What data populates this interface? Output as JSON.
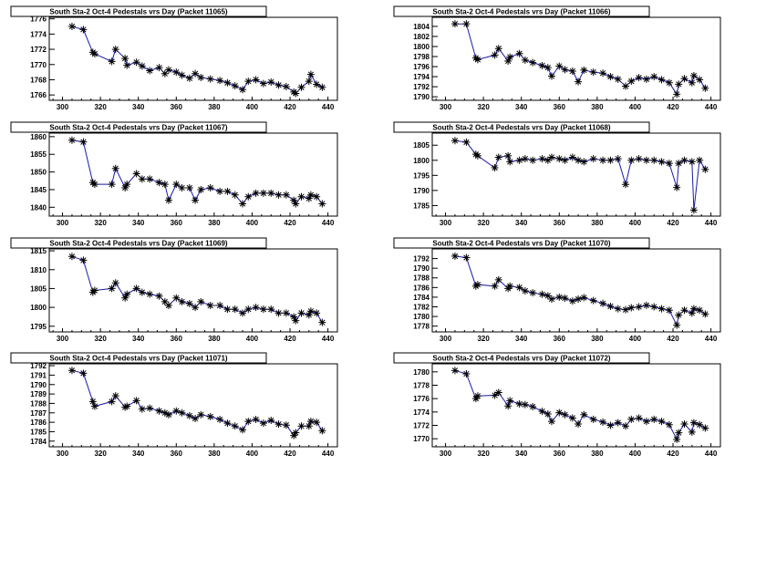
{
  "chart_data": [
    {
      "type": "line",
      "title": "South Sta-2 Oct-4 Pedestals vrs Day (Packet 11065)",
      "xlabel": "",
      "ylabel": "",
      "xlim": [
        293,
        445
      ],
      "ylim": [
        1765.3,
        1776.2
      ],
      "x_ticks": [
        300,
        320,
        340,
        360,
        380,
        400,
        420,
        440
      ],
      "y_ticks": [
        1766,
        1768,
        1770,
        1772,
        1774,
        1776
      ],
      "x": [
        305,
        311,
        316,
        317,
        326,
        328,
        333,
        334,
        339,
        342,
        346,
        351,
        354,
        356,
        360,
        363,
        367,
        370,
        373,
        378,
        383,
        387,
        391,
        395,
        398,
        402,
        406,
        410,
        414,
        418,
        422,
        423,
        426,
        430,
        431,
        434,
        437
      ],
      "values": [
        1775.0,
        1774.6,
        1771.6,
        1771.4,
        1770.4,
        1772.0,
        1770.8,
        1769.9,
        1770.3,
        1769.8,
        1769.2,
        1769.6,
        1768.8,
        1769.3,
        1769.0,
        1768.6,
        1768.2,
        1768.8,
        1768.3,
        1768.1,
        1767.9,
        1767.6,
        1767.2,
        1766.7,
        1767.8,
        1768.0,
        1767.5,
        1767.7,
        1767.3,
        1767.1,
        1766.4,
        1766.2,
        1767.0,
        1767.8,
        1768.7,
        1767.4,
        1767.0
      ]
    },
    {
      "type": "line",
      "title": "South Sta-2 Oct-4 Pedestals vrs Day (Packet 11066)",
      "xlabel": "",
      "ylabel": "",
      "xlim": [
        293,
        445
      ],
      "ylim": [
        1789.3,
        1805.8
      ],
      "x_ticks": [
        300,
        320,
        340,
        360,
        380,
        400,
        420,
        440
      ],
      "y_ticks": [
        1790,
        1792,
        1794,
        1796,
        1798,
        1800,
        1802,
        1804
      ],
      "x": [
        305,
        311,
        316,
        317,
        326,
        328,
        333,
        334,
        339,
        342,
        346,
        351,
        354,
        356,
        360,
        363,
        367,
        370,
        373,
        378,
        383,
        387,
        391,
        395,
        398,
        402,
        406,
        410,
        414,
        418,
        422,
        423,
        426,
        430,
        431,
        434,
        437
      ],
      "values": [
        1804.5,
        1804.5,
        1797.7,
        1797.4,
        1798.3,
        1799.6,
        1797.1,
        1797.9,
        1798.6,
        1797.3,
        1796.8,
        1796.2,
        1795.8,
        1794.1,
        1796.1,
        1795.4,
        1795.1,
        1793.0,
        1795.3,
        1794.9,
        1794.7,
        1794.0,
        1793.5,
        1792.1,
        1793.1,
        1793.8,
        1793.5,
        1794.0,
        1793.4,
        1792.8,
        1790.5,
        1792.5,
        1793.6,
        1792.8,
        1794.2,
        1793.4,
        1791.7
      ]
    },
    {
      "type": "line",
      "title": "South Sta-2 Oct-4 Pedestals vrs Day (Packet 11067)",
      "xlabel": "",
      "ylabel": "",
      "xlim": [
        293,
        445
      ],
      "ylim": [
        1837.5,
        1861.0
      ],
      "x_ticks": [
        300,
        320,
        340,
        360,
        380,
        400,
        420,
        440
      ],
      "y_ticks": [
        1840,
        1845,
        1850,
        1855,
        1860
      ],
      "x": [
        305,
        311,
        316,
        317,
        326,
        328,
        333,
        334,
        339,
        342,
        346,
        351,
        354,
        356,
        360,
        363,
        367,
        370,
        373,
        378,
        383,
        387,
        391,
        395,
        398,
        402,
        406,
        410,
        414,
        418,
        422,
        423,
        426,
        430,
        431,
        434,
        437
      ],
      "values": [
        1859.0,
        1858.5,
        1847.0,
        1846.5,
        1846.5,
        1851.0,
        1845.5,
        1846.5,
        1849.5,
        1848.0,
        1848.0,
        1847.0,
        1846.5,
        1842.0,
        1846.5,
        1845.5,
        1845.5,
        1842.0,
        1845.0,
        1845.5,
        1844.5,
        1844.5,
        1843.5,
        1841.0,
        1843.0,
        1844.0,
        1844.0,
        1844.0,
        1843.5,
        1843.5,
        1842.0,
        1841.0,
        1843.0,
        1842.5,
        1843.5,
        1843.0,
        1841.0
      ]
    },
    {
      "type": "line",
      "title": "South Sta-2 Oct-4 Pedestals vrs Day (Packet 11068)",
      "xlabel": "",
      "ylabel": "",
      "xlim": [
        293,
        445
      ],
      "ylim": [
        1781.5,
        1809.0
      ],
      "x_ticks": [
        300,
        320,
        340,
        360,
        380,
        400,
        420,
        440
      ],
      "y_ticks": [
        1785,
        1790,
        1795,
        1800,
        1805
      ],
      "x": [
        305,
        311,
        316,
        317,
        326,
        328,
        333,
        334,
        339,
        342,
        346,
        351,
        354,
        356,
        360,
        363,
        367,
        370,
        373,
        378,
        383,
        387,
        391,
        395,
        398,
        402,
        406,
        410,
        414,
        418,
        422,
        423,
        426,
        430,
        431,
        434,
        437
      ],
      "values": [
        1806.5,
        1806.0,
        1802.0,
        1801.5,
        1797.5,
        1801.0,
        1801.5,
        1799.5,
        1800.0,
        1800.5,
        1800.0,
        1800.5,
        1800.0,
        1801.0,
        1800.5,
        1800.0,
        1801.0,
        1800.0,
        1799.5,
        1800.5,
        1800.0,
        1800.0,
        1800.5,
        1792.0,
        1800.0,
        1800.5,
        1800.0,
        1800.0,
        1799.5,
        1799.0,
        1791.0,
        1799.0,
        1800.0,
        1799.5,
        1783.5,
        1800.0,
        1797.0
      ]
    },
    {
      "type": "line",
      "title": "South Sta-2 Oct-4 Pedestals vrs Day (Packet 11069)",
      "xlabel": "",
      "ylabel": "",
      "xlim": [
        293,
        445
      ],
      "ylim": [
        1793.5,
        1815.5
      ],
      "x_ticks": [
        300,
        320,
        340,
        360,
        380,
        400,
        420,
        440
      ],
      "y_ticks": [
        1795,
        1800,
        1805,
        1810,
        1815
      ],
      "x": [
        305,
        311,
        316,
        317,
        326,
        328,
        333,
        334,
        339,
        342,
        346,
        351,
        354,
        356,
        360,
        363,
        367,
        370,
        373,
        378,
        383,
        387,
        391,
        395,
        398,
        402,
        406,
        410,
        414,
        418,
        422,
        423,
        426,
        430,
        431,
        434,
        437
      ],
      "values": [
        1813.5,
        1812.5,
        1804.0,
        1804.5,
        1805.0,
        1806.5,
        1802.5,
        1803.5,
        1805.0,
        1804.0,
        1803.5,
        1803.0,
        1801.5,
        1800.5,
        1802.5,
        1801.5,
        1801.0,
        1800.0,
        1801.5,
        1800.5,
        1800.5,
        1799.5,
        1799.5,
        1798.5,
        1799.5,
        1800.0,
        1799.5,
        1799.5,
        1798.5,
        1798.5,
        1797.5,
        1796.5,
        1798.5,
        1798.0,
        1799.0,
        1798.5,
        1796.0
      ]
    },
    {
      "type": "line",
      "title": "South Sta-2 Oct-4 Pedestals vrs Day (Packet 11070)",
      "xlabel": "",
      "ylabel": "",
      "xlim": [
        293,
        445
      ],
      "ylim": [
        1776.8,
        1794.0
      ],
      "x_ticks": [
        300,
        320,
        340,
        360,
        380,
        400,
        420,
        440
      ],
      "y_ticks": [
        1778,
        1780,
        1782,
        1784,
        1786,
        1788,
        1790,
        1792
      ],
      "x": [
        305,
        311,
        316,
        317,
        326,
        328,
        333,
        334,
        339,
        342,
        346,
        351,
        354,
        356,
        360,
        363,
        367,
        370,
        373,
        378,
        383,
        387,
        391,
        395,
        398,
        402,
        406,
        410,
        414,
        418,
        422,
        423,
        426,
        430,
        431,
        434,
        437
      ],
      "values": [
        1792.5,
        1792.2,
        1786.3,
        1786.6,
        1786.3,
        1787.6,
        1785.8,
        1786.3,
        1786.0,
        1785.3,
        1784.9,
        1784.6,
        1784.3,
        1783.6,
        1784.0,
        1783.8,
        1783.2,
        1783.6,
        1783.9,
        1783.3,
        1782.7,
        1782.1,
        1781.6,
        1781.4,
        1781.8,
        1782.0,
        1782.3,
        1782.0,
        1781.6,
        1781.3,
        1778.2,
        1780.3,
        1781.3,
        1780.7,
        1781.6,
        1781.3,
        1780.5
      ]
    },
    {
      "type": "line",
      "title": "South Sta-2 Oct-4 Pedestals vrs Day (Packet 11071)",
      "xlabel": "",
      "ylabel": "",
      "xlim": [
        293,
        445
      ],
      "ylim": [
        1783.4,
        1792.2
      ],
      "x_ticks": [
        300,
        320,
        340,
        360,
        380,
        400,
        420,
        440
      ],
      "y_ticks": [
        1784,
        1785,
        1786,
        1787,
        1788,
        1789,
        1790,
        1791,
        1792
      ],
      "x": [
        305,
        311,
        316,
        317,
        326,
        328,
        333,
        334,
        339,
        342,
        346,
        351,
        354,
        356,
        360,
        363,
        367,
        370,
        373,
        378,
        383,
        387,
        391,
        395,
        398,
        402,
        406,
        410,
        414,
        418,
        422,
        423,
        426,
        430,
        431,
        434,
        437
      ],
      "values": [
        1791.5,
        1791.2,
        1788.2,
        1787.7,
        1788.2,
        1788.8,
        1787.6,
        1787.7,
        1788.3,
        1787.4,
        1787.5,
        1787.2,
        1787.0,
        1786.8,
        1787.2,
        1787.0,
        1786.7,
        1786.4,
        1786.8,
        1786.6,
        1786.3,
        1785.9,
        1785.6,
        1785.2,
        1786.1,
        1786.3,
        1785.9,
        1786.2,
        1785.8,
        1785.7,
        1784.6,
        1784.9,
        1785.6,
        1785.6,
        1786.1,
        1786.0,
        1785.1
      ]
    },
    {
      "type": "line",
      "title": "South Sta-2 Oct-4 Pedestals vrs Day (Packet 11072)",
      "xlabel": "",
      "ylabel": "",
      "xlim": [
        293,
        445
      ],
      "ylim": [
        1768.8,
        1781.2
      ],
      "x_ticks": [
        300,
        320,
        340,
        360,
        380,
        400,
        420,
        440
      ],
      "y_ticks": [
        1770,
        1772,
        1774,
        1776,
        1778,
        1780
      ],
      "x": [
        305,
        311,
        316,
        317,
        326,
        328,
        333,
        334,
        339,
        342,
        346,
        351,
        354,
        356,
        360,
        363,
        367,
        370,
        373,
        378,
        383,
        387,
        391,
        395,
        398,
        402,
        406,
        410,
        414,
        418,
        422,
        423,
        426,
        430,
        431,
        434,
        437
      ],
      "values": [
        1780.2,
        1779.7,
        1776.0,
        1776.4,
        1776.5,
        1776.9,
        1774.9,
        1775.7,
        1775.2,
        1775.1,
        1774.8,
        1774.1,
        1773.7,
        1772.6,
        1773.9,
        1773.6,
        1773.1,
        1772.2,
        1773.6,
        1772.9,
        1772.5,
        1772.0,
        1772.4,
        1771.9,
        1772.9,
        1773.1,
        1772.6,
        1772.9,
        1772.6,
        1772.1,
        1769.9,
        1770.9,
        1772.2,
        1771.0,
        1772.4,
        1772.1,
        1771.6
      ]
    }
  ],
  "style": {
    "line_color": "#1a1aa8",
    "marker_color": "#000000",
    "frame_color": "#000000",
    "background": "#ffffff"
  }
}
